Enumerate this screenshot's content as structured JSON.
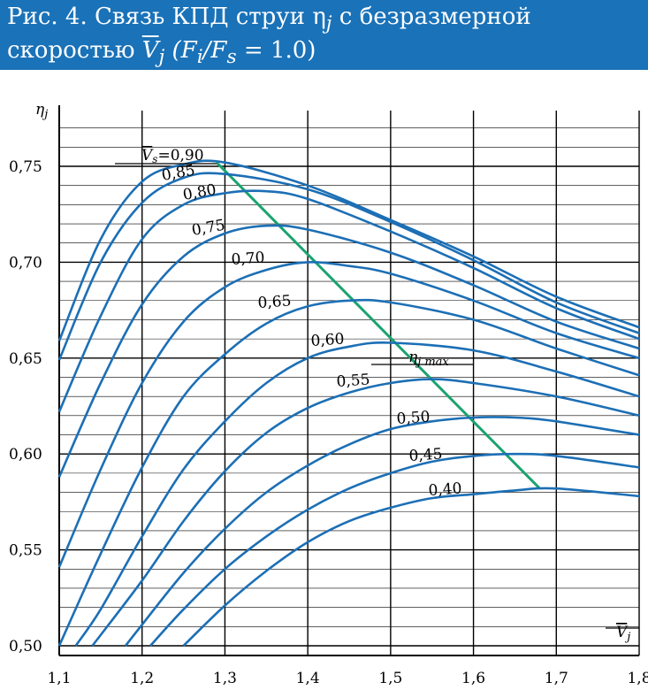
{
  "title": {
    "line1_prefix": "Рис. 4. Связь КПД струи η",
    "line1_sub": "j",
    "line1_suffix": " с безразмерной",
    "line2_prefix": "скоростью ",
    "line2_var": "V",
    "line2_var_sub": "j",
    "line2_paren": " (F",
    "line2_fi_sub": "i",
    "line2_slash": "/F",
    "line2_fs_sub": "s",
    "line2_end": " = 1.0)"
  },
  "colors": {
    "header_bg": "#1a72b8",
    "curve": "#1c6fb5",
    "envelope": "#1aa36f",
    "grid": "#000000"
  },
  "chart_data": {
    "type": "line",
    "ylabel": "ηj",
    "xlabel": "Vj",
    "xlim": [
      1.1,
      1.8
    ],
    "ylim": [
      0.5,
      0.77
    ],
    "x_ticks": [
      "1,1",
      "1,2",
      "1,3",
      "1,4",
      "1,5",
      "1,6",
      "1,7",
      "1,8"
    ],
    "y_ticks": [
      "0,50",
      "0,55",
      "0,60",
      "0,65",
      "0,70",
      "0,75"
    ],
    "y_tick_values": [
      0.5,
      0.55,
      0.6,
      0.65,
      0.7,
      0.75
    ],
    "x_tick_values": [
      1.1,
      1.2,
      1.3,
      1.4,
      1.5,
      1.6,
      1.7,
      1.8
    ],
    "grid": true,
    "series": [
      {
        "name": "0,90",
        "x": [
          1.1,
          1.15,
          1.2,
          1.25,
          1.3,
          1.4,
          1.5,
          1.6,
          1.7,
          1.8
        ],
        "y": [
          0.659,
          0.712,
          0.742,
          0.751,
          0.752,
          0.74,
          0.722,
          0.703,
          0.682,
          0.666
        ]
      },
      {
        "name": "0,85",
        "x": [
          1.1,
          1.15,
          1.2,
          1.25,
          1.3,
          1.4,
          1.5,
          1.6,
          1.7,
          1.8
        ],
        "y": [
          0.649,
          0.7,
          0.731,
          0.744,
          0.746,
          0.738,
          0.721,
          0.701,
          0.679,
          0.663
        ]
      },
      {
        "name": "0,80",
        "x": [
          1.1,
          1.15,
          1.2,
          1.25,
          1.3,
          1.35,
          1.4,
          1.5,
          1.6,
          1.7,
          1.8
        ],
        "y": [
          0.622,
          0.672,
          0.712,
          0.73,
          0.736,
          0.737,
          0.733,
          0.716,
          0.697,
          0.676,
          0.66
        ]
      },
      {
        "name": "0,75",
        "x": [
          1.1,
          1.15,
          1.2,
          1.25,
          1.3,
          1.35,
          1.4,
          1.5,
          1.6,
          1.7,
          1.8
        ],
        "y": [
          0.588,
          0.637,
          0.678,
          0.703,
          0.715,
          0.719,
          0.717,
          0.705,
          0.688,
          0.669,
          0.655
        ]
      },
      {
        "name": "0,70",
        "x": [
          1.1,
          1.15,
          1.2,
          1.25,
          1.3,
          1.35,
          1.4,
          1.45,
          1.5,
          1.6,
          1.7,
          1.8
        ],
        "y": [
          0.541,
          0.592,
          0.637,
          0.669,
          0.687,
          0.696,
          0.7,
          0.698,
          0.694,
          0.68,
          0.663,
          0.65
        ]
      },
      {
        "name": "0,65",
        "x": [
          1.1,
          1.15,
          1.2,
          1.25,
          1.3,
          1.35,
          1.4,
          1.45,
          1.5,
          1.6,
          1.7,
          1.8
        ],
        "y": [
          0.5,
          0.548,
          0.593,
          0.63,
          0.652,
          0.668,
          0.677,
          0.68,
          0.679,
          0.67,
          0.655,
          0.641
        ]
      },
      {
        "name": "0,60",
        "x": [
          1.12,
          1.15,
          1.2,
          1.25,
          1.3,
          1.35,
          1.4,
          1.45,
          1.5,
          1.6,
          1.7,
          1.8
        ],
        "y": [
          0.5,
          0.519,
          0.557,
          0.592,
          0.617,
          0.637,
          0.65,
          0.656,
          0.658,
          0.654,
          0.643,
          0.63
        ]
      },
      {
        "name": "0,55",
        "x": [
          1.14,
          1.2,
          1.25,
          1.3,
          1.35,
          1.4,
          1.45,
          1.5,
          1.55,
          1.6,
          1.7,
          1.8
        ],
        "y": [
          0.5,
          0.534,
          0.565,
          0.591,
          0.611,
          0.624,
          0.632,
          0.637,
          0.639,
          0.637,
          0.63,
          0.62
        ]
      },
      {
        "name": "0,50",
        "x": [
          1.18,
          1.2,
          1.25,
          1.3,
          1.35,
          1.4,
          1.45,
          1.5,
          1.55,
          1.6,
          1.65,
          1.7,
          1.8
        ],
        "y": [
          0.5,
          0.511,
          0.538,
          0.561,
          0.58,
          0.594,
          0.605,
          0.613,
          0.617,
          0.619,
          0.619,
          0.617,
          0.61
        ]
      },
      {
        "name": "0,45",
        "x": [
          1.21,
          1.25,
          1.3,
          1.35,
          1.4,
          1.45,
          1.5,
          1.55,
          1.6,
          1.65,
          1.7,
          1.8
        ],
        "y": [
          0.5,
          0.519,
          0.54,
          0.557,
          0.571,
          0.582,
          0.59,
          0.596,
          0.599,
          0.6,
          0.599,
          0.593
        ]
      },
      {
        "name": "0,40",
        "x": [
          1.25,
          1.3,
          1.35,
          1.4,
          1.45,
          1.5,
          1.55,
          1.6,
          1.65,
          1.7,
          1.8
        ],
        "y": [
          0.5,
          0.521,
          0.539,
          0.554,
          0.565,
          0.572,
          0.577,
          0.579,
          0.581,
          0.582,
          0.578
        ]
      }
    ],
    "envelope": {
      "name": "ηj max",
      "x": [
        1.29,
        1.68
      ],
      "y": [
        0.752,
        0.582
      ]
    },
    "vs_label": "Vs",
    "vs_label_suffix": "=0,90"
  }
}
